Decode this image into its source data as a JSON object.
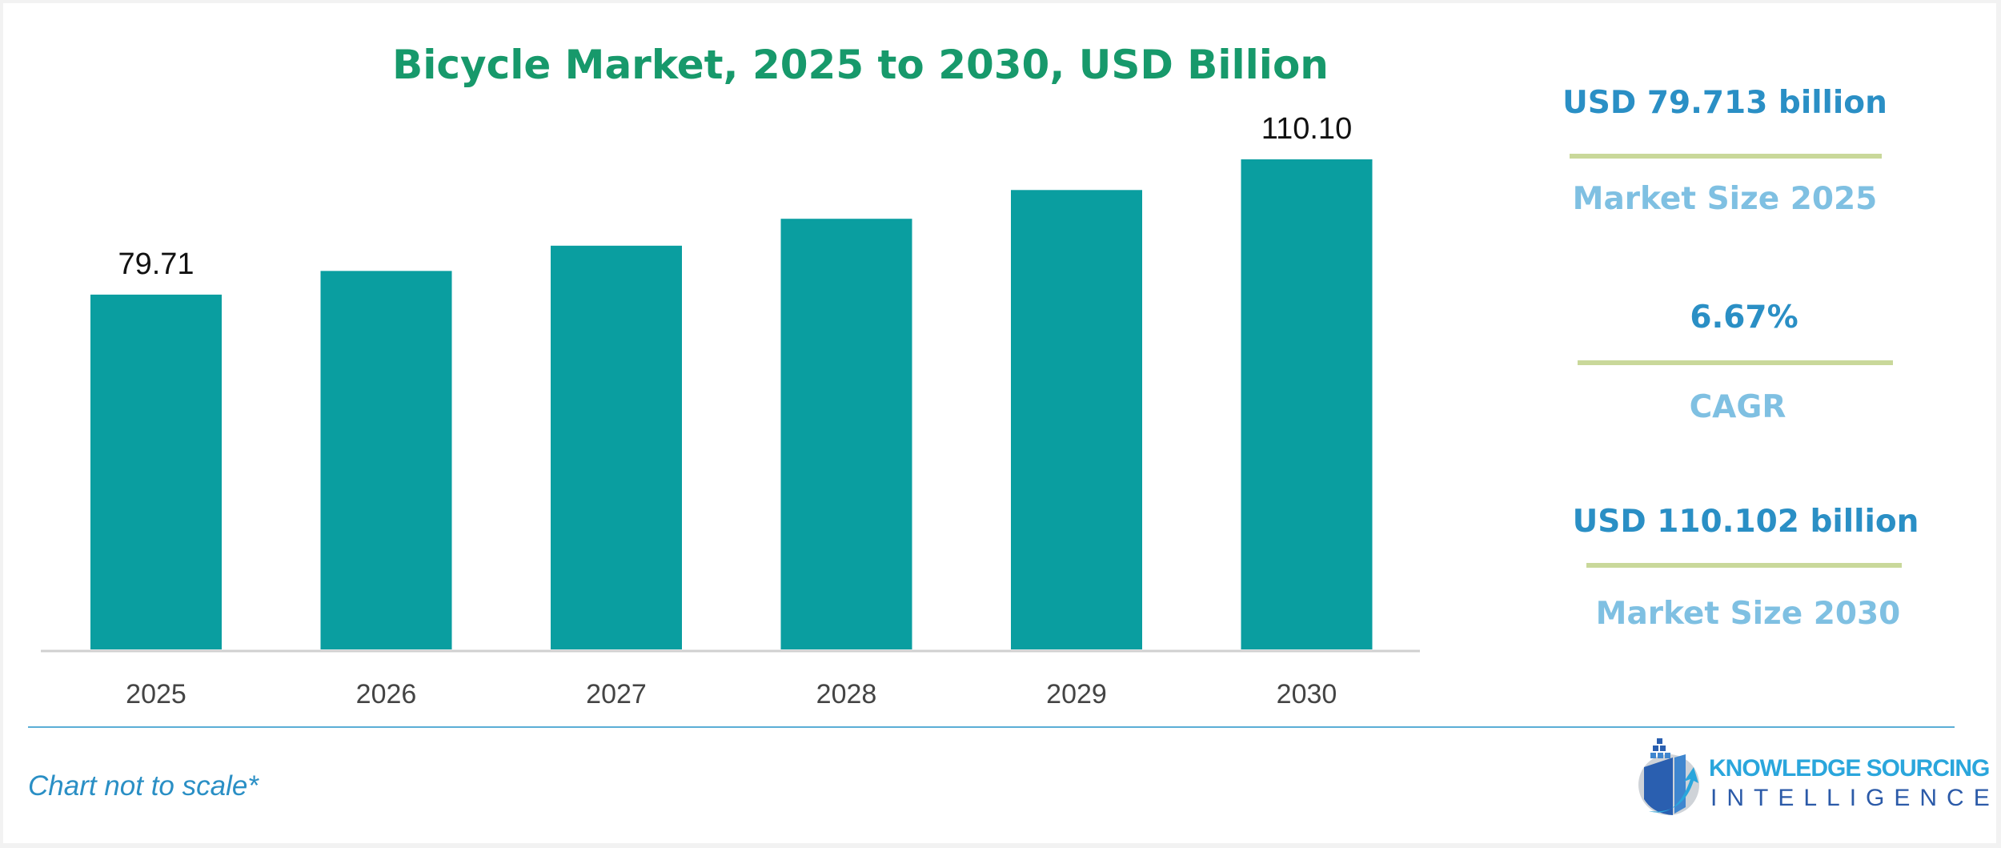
{
  "chart_data": {
    "type": "bar",
    "title": "Bicycle Market, 2025 to 2030, USD Billion",
    "categories": [
      "2025",
      "2026",
      "2027",
      "2028",
      "2029",
      "2030"
    ],
    "values": [
      79.71,
      85.03,
      90.7,
      96.75,
      103.21,
      110.1
    ],
    "data_labels": {
      "2025": "79.71",
      "2030": "110.10"
    },
    "xlabel": "",
    "ylabel": "",
    "ylim": [
      0,
      110.1
    ],
    "grid": false,
    "bar_color": "#0a9ea0",
    "note": "Chart not to scale*"
  },
  "kpis": [
    {
      "value": "USD 79.713 billion",
      "label": "Market Size 2025"
    },
    {
      "value": "6.67%",
      "label": "CAGR"
    },
    {
      "value": "USD 110.102 billion",
      "label": "Market Size 2030"
    }
  ],
  "colors": {
    "title": "#17996b",
    "kpi_value": "#2a8fc5",
    "kpi_label": "#7fc0e2",
    "separator": "#c9d89a"
  },
  "logo": {
    "line1": "KNOWLEDGE SOURCING",
    "line2": "INTELLIGENCE",
    "icon": "building-arrow-logo-icon"
  }
}
